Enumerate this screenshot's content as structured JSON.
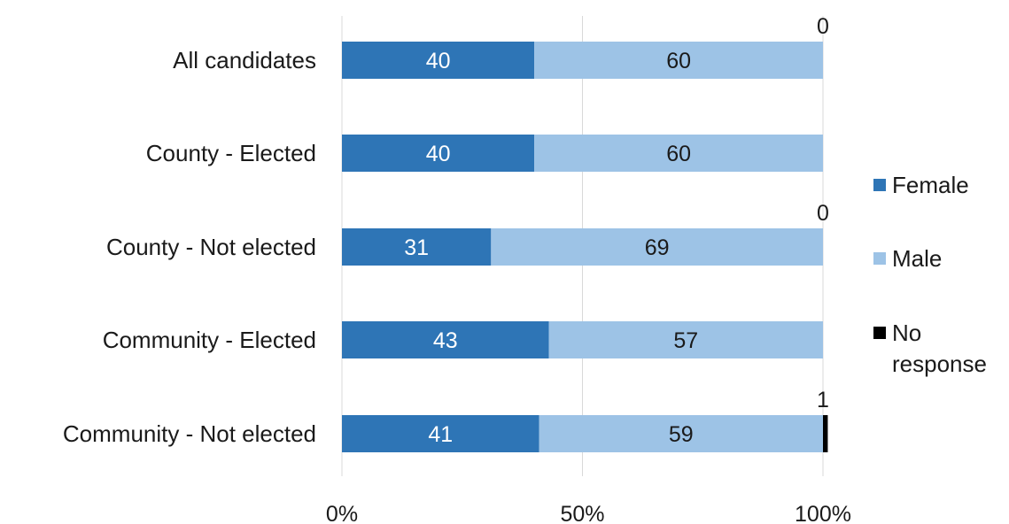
{
  "chart_data": {
    "type": "bar",
    "orientation": "horizontal",
    "stacked": true,
    "percent": true,
    "categories": [
      "All candidates",
      "County - Elected",
      "County - Not elected",
      "Community - Elected",
      "Community - Not elected"
    ],
    "series": [
      {
        "name": "Female",
        "values": [
          40,
          40,
          31,
          43,
          41
        ],
        "color": "#2e75b6"
      },
      {
        "name": "Male",
        "values": [
          60,
          60,
          69,
          57,
          59
        ],
        "color": "#9dc3e6"
      },
      {
        "name": "No response",
        "values": [
          0,
          0,
          0,
          0,
          1
        ],
        "color": "#000000"
      }
    ],
    "xlim": [
      0,
      100
    ],
    "xticks": [
      "0%",
      "50%",
      "100%"
    ],
    "grid": true,
    "legend_position": "right",
    "no_response_labels": [
      "0",
      "",
      "0",
      "",
      "1"
    ]
  }
}
